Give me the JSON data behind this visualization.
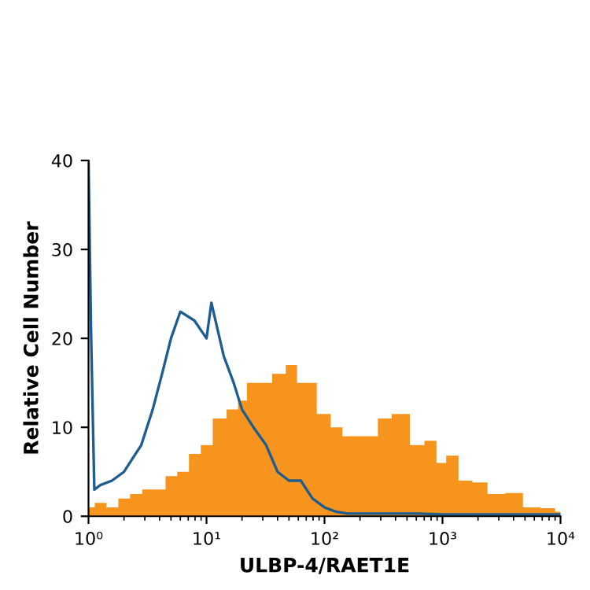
{
  "chart_data": {
    "type": "area",
    "xlabel": "ULBP-4/RAET1E",
    "ylabel": "Relative Cell Number",
    "log": "x",
    "xlim": [
      1,
      10000
    ],
    "xticks": [
      {
        "value": 1,
        "label": "10⁰"
      },
      {
        "value": 10,
        "label": "10¹"
      },
      {
        "value": 100,
        "label": "10²"
      },
      {
        "value": 1000,
        "label": "10³"
      },
      {
        "value": 10000,
        "label": "10⁴"
      }
    ],
    "ylim": [
      0,
      40
    ],
    "yticks": [
      0,
      10,
      20,
      30,
      40
    ],
    "grid": false,
    "legend": false,
    "series": [
      {
        "color": "#f7941d",
        "x": [
          1,
          1.26,
          1.58,
          2.0,
          2.5,
          3.2,
          4.0,
          5.0,
          6.3,
          7.9,
          10,
          12.6,
          17,
          20,
          24,
          32,
          40,
          54,
          63,
          72,
          100,
          126,
          158,
          251,
          316,
          427,
          631,
          776,
          1000,
          1148,
          1585,
          1995,
          2818,
          3981,
          5623,
          7943,
          10000
        ],
        "values": [
          1,
          1.5,
          1,
          2,
          2.5,
          3,
          3,
          4.5,
          5,
          7,
          8,
          11,
          12,
          13,
          15,
          15,
          16,
          17,
          15,
          15,
          11.5,
          10,
          9,
          9,
          11,
          11.5,
          8,
          8.5,
          6,
          6.8,
          4,
          3.8,
          2.5,
          2.6,
          1,
          0.9,
          0.5
        ]
      },
      {
        "type": "line",
        "color": "#1f5c8f",
        "x": [
          1,
          1.05,
          1.12,
          1.26,
          1.58,
          2.0,
          2.5,
          2.8,
          3.5,
          4.2,
          5.0,
          6.0,
          7.9,
          10,
          11,
          14,
          17,
          20,
          25,
          32,
          40,
          50,
          63,
          79,
          100,
          126,
          158,
          631,
          1000,
          10000
        ],
        "values": [
          40,
          21,
          3,
          3.5,
          4,
          5,
          7,
          8,
          12,
          16,
          20,
          23,
          22,
          20,
          24,
          18,
          15,
          12,
          10,
          8,
          5,
          4,
          4,
          2,
          1,
          0.5,
          0.3,
          0.3,
          0.2,
          0.2
        ]
      }
    ]
  }
}
